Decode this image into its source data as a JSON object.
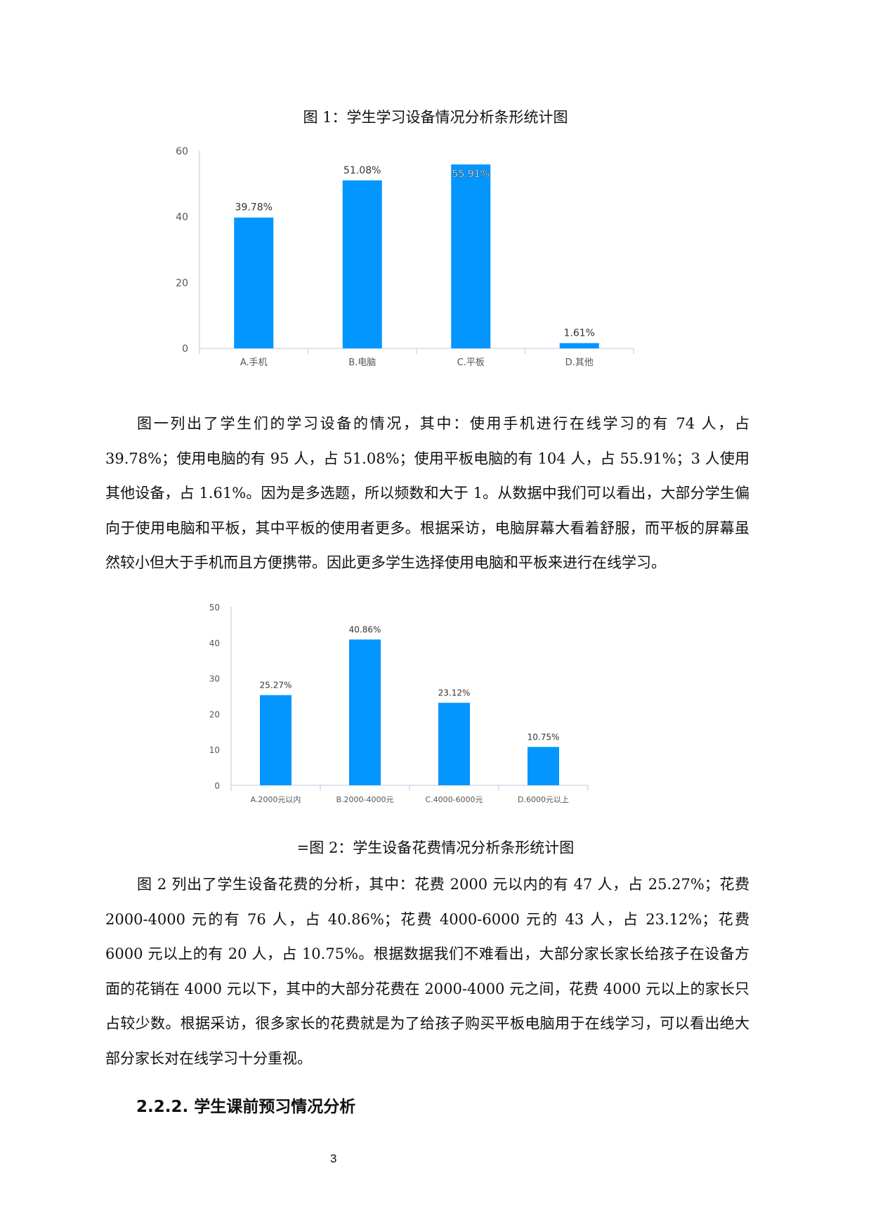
{
  "figure1_title": "图 1：学生学习设备情况分析条形统计图",
  "paragraph1": "图一列出了学生们的学习设备的情况，其中：使用手机进行在线学习的有 74 人，占 39.78%；使用电脑的有 95 人，占 51.08%；使用平板电脑的有 104 人，占 55.91%；3 人使用其他设备，占 1.61%。因为是多选题，所以频数和大于 1。从数据中我们可以看出，大部分学生偏向于使用电脑和平板，其中平板的使用者更多。根据采访，电脑屏幕大看着舒服，而平板的屏幕虽然较小但大于手机而且方便携带。因此更多学生选择使用电脑和平板来进行在线学习。",
  "figure2_caption": "=图 2：学生设备花费情况分析条形统计图",
  "paragraph2": "图 2 列出了学生设备花费的分析，其中：花费 2000 元以内的有 47 人，占 25.27%；花费 2000-4000 元的有 76 人，占 40.86%；花费 4000-6000 元的 43 人，占 23.12%；花费 6000 元以上的有 20 人，占 10.75%。根据数据我们不难看出，大部分家长家长给孩子在设备方面的花销在 4000 元以下，其中的大部分花费在 2000-4000 元之间，花费 4000 元以上的家长只占较少数。根据采访，很多家长的花费就是为了给孩子购买平板电脑用于在线学习，可以看出绝大部分家长对在线学习十分重视。",
  "heading": "2.2.2.  学生课前预习情况分析",
  "page_number": "3",
  "chart_data": [
    {
      "type": "bar",
      "categories": [
        "A.手机",
        "B.电脑",
        "C.平板",
        "D.其他"
      ],
      "values": [
        39.78,
        51.08,
        55.91,
        1.61
      ],
      "data_labels": [
        "39.78%",
        "51.08%",
        "55.91%",
        "1.61%"
      ],
      "yticks": [
        0,
        20,
        40,
        60
      ],
      "ylim": [
        0,
        60
      ],
      "grid": false,
      "color": "#0496FF"
    },
    {
      "type": "bar",
      "categories": [
        "A.2000元以内",
        "B.2000-4000元",
        "C.4000-6000元",
        "D.6000元以上"
      ],
      "values": [
        25.27,
        40.86,
        23.12,
        10.75
      ],
      "data_labels": [
        "25.27%",
        "40.86%",
        "23.12%",
        "10.75%"
      ],
      "yticks": [
        0,
        10,
        20,
        30,
        40,
        50
      ],
      "ylim": [
        0,
        50
      ],
      "grid": false,
      "color": "#0496FF"
    }
  ]
}
